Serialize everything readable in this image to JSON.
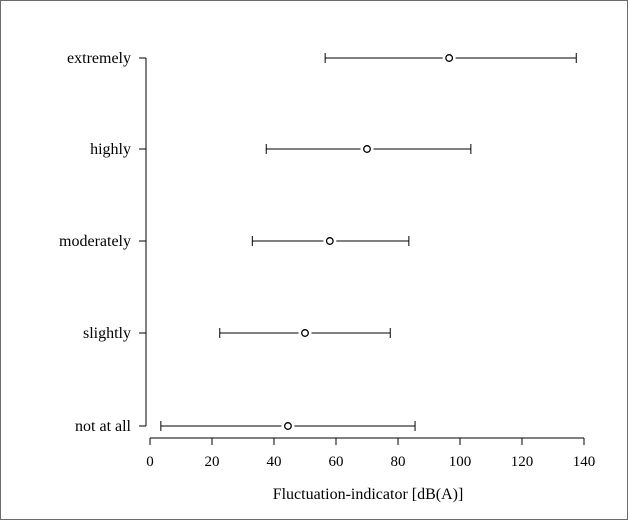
{
  "chart_data": {
    "type": "errorbar",
    "orientation": "horizontal",
    "title": "",
    "xlabel": "Fluctuation-indicator  [dB(A)]",
    "ylabel": "",
    "xlim": [
      0,
      140
    ],
    "x_ticks": [
      0,
      20,
      40,
      60,
      80,
      100,
      120,
      140
    ],
    "x_tick_labels": [
      "0",
      "20",
      "40",
      "60",
      "80",
      "100",
      "120",
      "140"
    ],
    "categories": [
      "not at all",
      "slightly",
      "moderately",
      "highly",
      "extremely"
    ],
    "series": [
      {
        "points": [
          {
            "category": "not at all",
            "mean": 44.5,
            "low": 3.5,
            "high": 85.5
          },
          {
            "category": "slightly",
            "mean": 50,
            "low": 22.5,
            "high": 77.5
          },
          {
            "category": "moderately",
            "mean": 58,
            "low": 33,
            "high": 83.5
          },
          {
            "category": "highly",
            "mean": 70,
            "low": 37.5,
            "high": 103.5
          },
          {
            "category": "extremely",
            "mean": 96.5,
            "low": 56.5,
            "high": 137.5
          }
        ]
      }
    ],
    "grid": false,
    "marker": "open-circle",
    "colors": {
      "line": "#000000",
      "marker_fill": "#ffffff",
      "frame": "#6b6b6b"
    }
  }
}
